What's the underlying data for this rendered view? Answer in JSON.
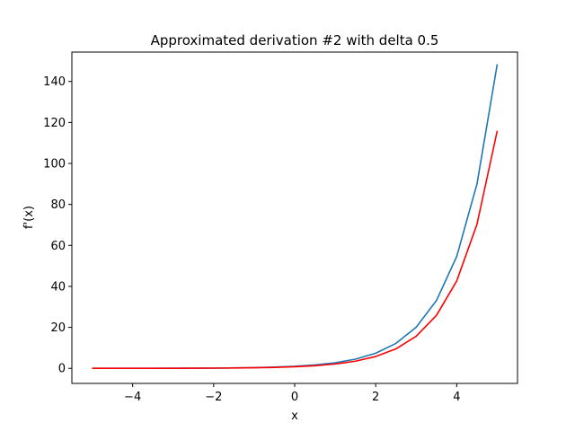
{
  "chart_data": {
    "type": "line",
    "title": "Approximated derivation #2 with delta 0.5",
    "xlabel": "x",
    "ylabel": "f'(x)",
    "xlim": [
      -5.5,
      5.5
    ],
    "ylim": [
      -7.35,
      154.35
    ],
    "x_ticks": [
      -4,
      -2,
      0,
      2,
      4
    ],
    "x_tick_labels": [
      "−4",
      "−2",
      "0",
      "2",
      "4"
    ],
    "y_ticks": [
      0,
      20,
      40,
      60,
      80,
      100,
      120,
      140
    ],
    "y_tick_labels": [
      "0",
      "20",
      "40",
      "60",
      "80",
      "100",
      "120",
      "140"
    ],
    "grid": false,
    "legend": "none",
    "x": [
      -5.0,
      -4.5,
      -4.0,
      -3.5,
      -3.0,
      -2.5,
      -2.0,
      -1.5,
      -1.0,
      -0.5,
      0.0,
      0.5,
      1.0,
      1.5,
      2.0,
      2.5,
      3.0,
      3.5,
      4.0,
      4.5,
      5.0
    ],
    "series": [
      {
        "color": "#1f77b4",
        "values": [
          0.0067,
          0.0111,
          0.0183,
          0.0302,
          0.0498,
          0.0821,
          0.1353,
          0.2231,
          0.3679,
          0.6065,
          1.0,
          1.6487,
          2.7183,
          4.4817,
          7.3891,
          12.1825,
          20.0855,
          33.1155,
          54.5982,
          90.0171,
          148.4132
        ]
      },
      {
        "color": "#ff0000",
        "values": [
          0.0053,
          0.0087,
          0.0143,
          0.0236,
          0.0389,
          0.0641,
          0.1057,
          0.1743,
          0.2874,
          0.4738,
          0.7812,
          1.288,
          2.1236,
          3.5013,
          5.7727,
          9.5176,
          15.6918,
          25.8715,
          42.6548,
          70.3259,
          115.9478
        ]
      }
    ]
  }
}
